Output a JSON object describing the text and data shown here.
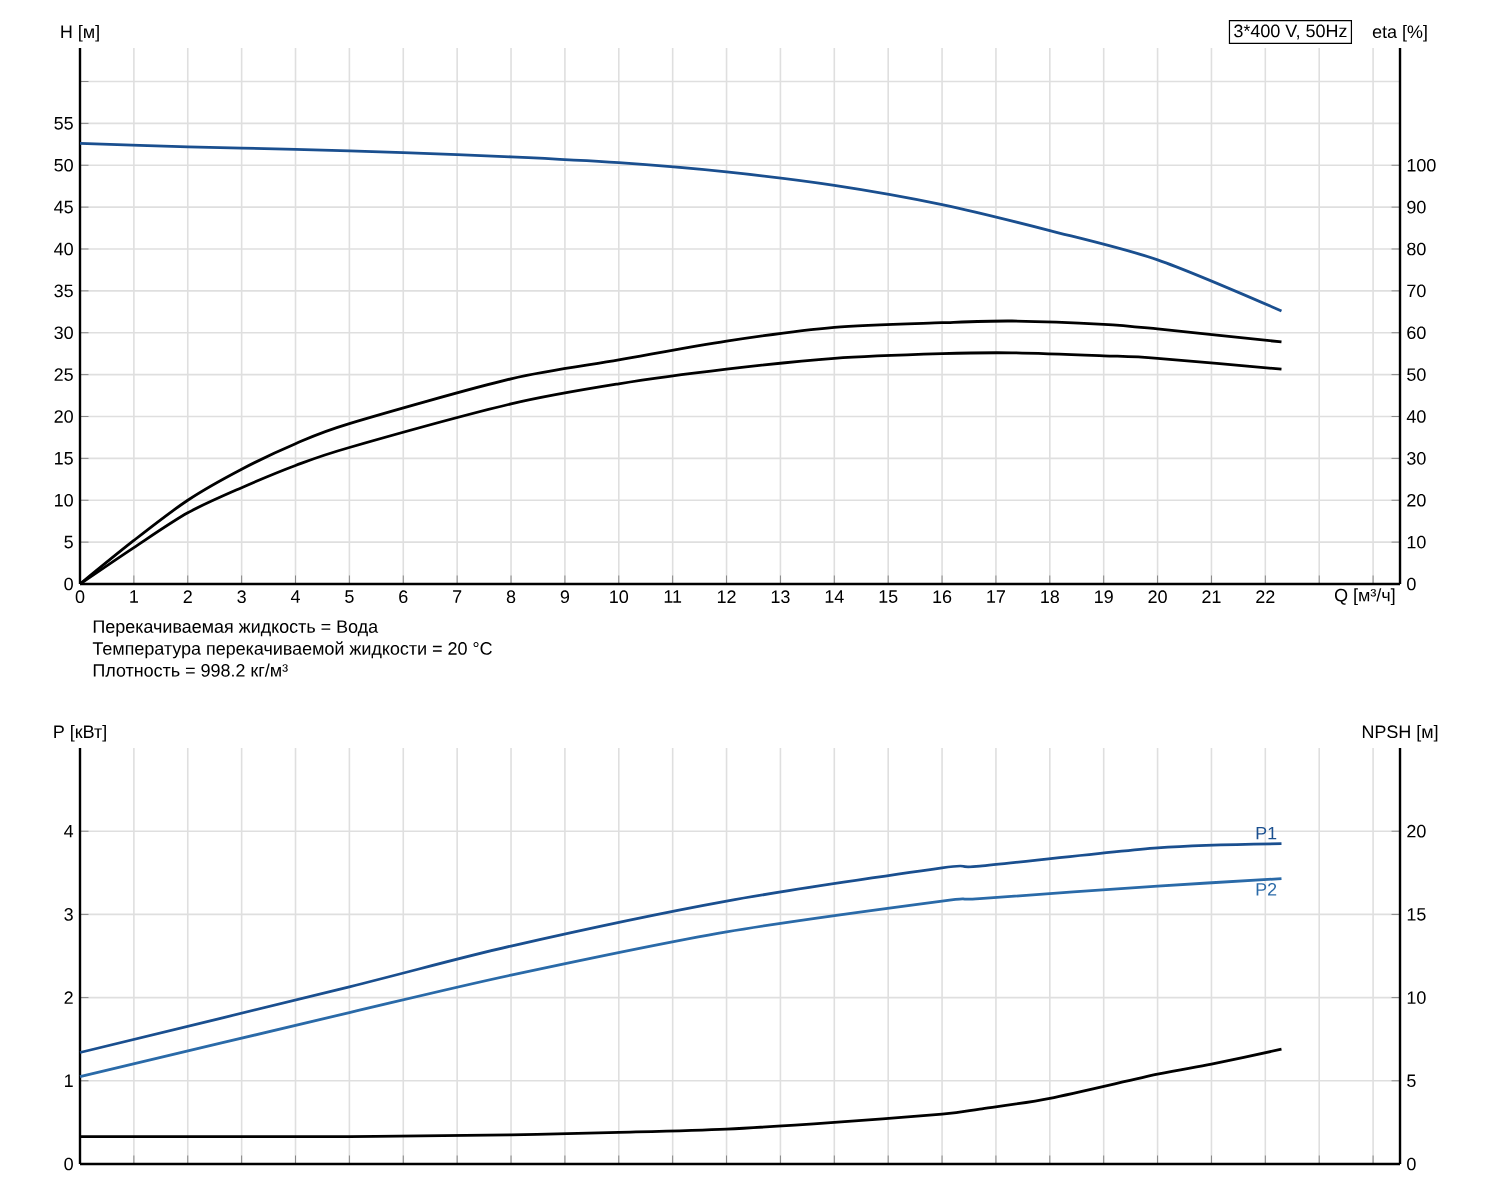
{
  "chart_data": [
    {
      "type": "line",
      "title": "3*400 V, 50Hz",
      "xlabel": "Q [м³/ч]",
      "ylabel": "H [м]",
      "y2label": "eta [%]",
      "annotations": [
        "Перекачиваемая жидкость = Вода",
        "Температура перекачиваемой жидкости = 20 °C",
        "Плотность = 998.2 кг/м³"
      ],
      "xlim": [
        0,
        24.5
      ],
      "xticks": [
        0,
        1,
        2,
        3,
        4,
        5,
        6,
        7,
        8,
        9,
        10,
        11,
        12,
        13,
        14,
        15,
        16,
        17,
        18,
        19,
        20,
        21,
        22,
        {
          "value": 23,
          "label": null
        },
        {
          "value": 24,
          "label": null
        }
      ],
      "ylim": [
        0,
        64
      ],
      "yticks": [
        0,
        5,
        10,
        15,
        20,
        25,
        30,
        35,
        40,
        45,
        50,
        55,
        {
          "value": 60,
          "label": null
        }
      ],
      "y2lim": [
        0,
        128
      ],
      "y2ticks": [
        0,
        10,
        20,
        30,
        40,
        50,
        60,
        70,
        80,
        90,
        100
      ],
      "grid": true,
      "series": [
        {
          "color": "#1a4f8f",
          "x": [
            0,
            2,
            4,
            6,
            8,
            10,
            12,
            14,
            16,
            18,
            20,
            22.3
          ],
          "values": [
            52.6,
            52.2,
            51.9,
            51.5,
            51.0,
            50.3,
            49.2,
            47.6,
            45.3,
            42.2,
            38.7,
            32.6
          ]
        },
        {
          "color": "#000000",
          "axis": "y2",
          "x": [
            0,
            1,
            2,
            3,
            4,
            5,
            8,
            10,
            12,
            14,
            16,
            17.3,
            19,
            20,
            22.3
          ],
          "values": [
            0,
            10.4,
            20,
            27.4,
            33.5,
            38.3,
            49,
            53.5,
            58,
            61.3,
            62.4,
            62.8,
            62,
            60.9,
            57.8
          ]
        },
        {
          "color": "#000000",
          "axis": "y2",
          "x": [
            0,
            1,
            2,
            3,
            4,
            5,
            8,
            10,
            12,
            14,
            16,
            17.3,
            19,
            20,
            22.3
          ],
          "values": [
            0,
            8.7,
            17,
            23,
            28.3,
            32.6,
            43,
            47.8,
            51.3,
            53.9,
            55,
            55.2,
            54.5,
            53.9,
            51.3
          ]
        }
      ]
    },
    {
      "type": "line",
      "ylabel": "P [кВт]",
      "y2label": "NPSH [м]",
      "xlim": [
        0,
        24.5
      ],
      "xticks": [
        0,
        1,
        2,
        3,
        4,
        5,
        6,
        7,
        8,
        9,
        10,
        11,
        12,
        13,
        14,
        15,
        16,
        17,
        18,
        19,
        20,
        21,
        22,
        23,
        24
      ],
      "ylim": [
        0,
        5
      ],
      "yticks": [
        0,
        1,
        2,
        3,
        4
      ],
      "y2lim": [
        0,
        25
      ],
      "y2ticks": [
        0,
        5,
        10,
        15,
        20
      ],
      "tick_labels": "y",
      "grid": true,
      "series": [
        {
          "name": "P1",
          "color": "#1a4f8f",
          "x": [
            0,
            5,
            8,
            12,
            16,
            16.7,
            20,
            22.3
          ],
          "values": [
            1.34,
            2.13,
            2.62,
            3.16,
            3.56,
            3.58,
            3.8,
            3.85
          ]
        },
        {
          "name": "P2",
          "color": "#2a6aa8",
          "x": [
            0,
            5,
            8,
            12,
            16,
            16.7,
            20,
            22.3
          ],
          "values": [
            1.05,
            1.82,
            2.27,
            2.79,
            3.16,
            3.19,
            3.34,
            3.43
          ]
        },
        {
          "color": "#000000",
          "axis": "y2",
          "x": [
            0,
            5,
            8,
            10,
            12,
            14,
            16,
            16.7,
            18,
            20,
            21,
            22.3
          ],
          "values": [
            1.65,
            1.65,
            1.75,
            1.9,
            2.1,
            2.5,
            3.0,
            3.3,
            3.95,
            5.4,
            6.0,
            6.9
          ]
        }
      ]
    }
  ]
}
